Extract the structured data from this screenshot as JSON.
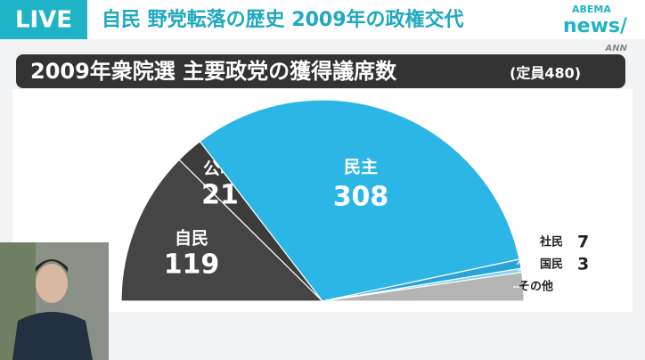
{
  "header": {
    "live": "LIVE",
    "headline": "自民 野党転落の歴史 2009年の政権交代",
    "logo_top": "ABEMA",
    "logo_bottom": "news/",
    "network": "ANN"
  },
  "chart_data": {
    "type": "half-pie",
    "title": "2009年衆院選 主要政党の獲得議席数",
    "subtitle": "(定員480)",
    "categories": [
      "自民",
      "公明",
      "民主",
      "社民",
      "国民",
      "その他"
    ],
    "values": [
      119,
      21,
      308,
      7,
      3,
      22
    ],
    "value_labels": [
      "119",
      "21",
      "308",
      "7",
      "3",
      null
    ],
    "colors": [
      "#454545",
      "#3c3c3c",
      "#2bb6e6",
      "#2aa3db",
      "#7fd3f2",
      "#b4b4b4"
    ]
  }
}
